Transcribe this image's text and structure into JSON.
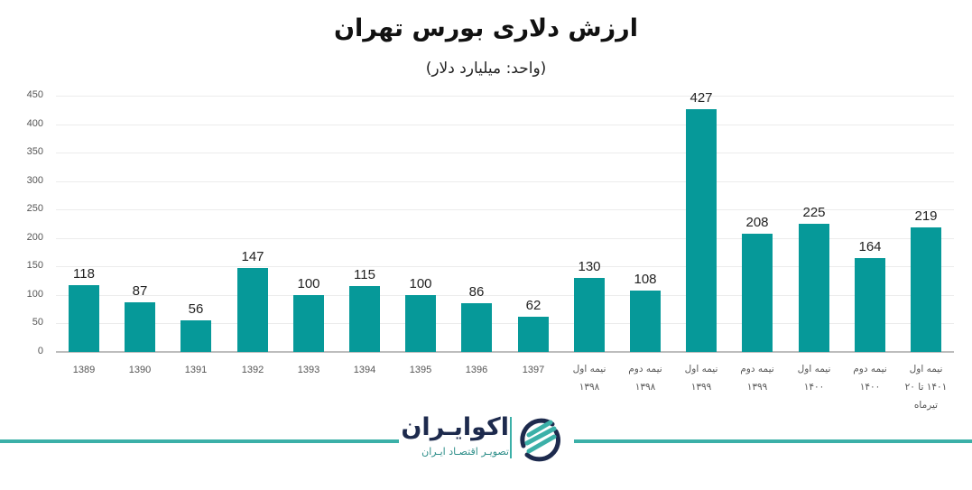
{
  "header": {
    "title": "ارزش دلاری بورس تهران",
    "subtitle": "(واحد: میلیارد دلار)"
  },
  "colors": {
    "bar": "#069999",
    "grid": "#ececec",
    "axis": "#bdbdbd",
    "footer_line": "#3bb0a8",
    "logo_navy": "#1d2a4d",
    "logo_teal": "#3bb0a8"
  },
  "brand": {
    "name": "اکوایـران",
    "tagline": "تصویـر اقتصـاد ایـران"
  },
  "chart_data": {
    "type": "bar",
    "title": "ارزش دلاری بورس تهران",
    "subtitle": "(واحد: میلیارد دلار)",
    "xlabel": "",
    "ylabel": "",
    "ylim": [
      0,
      450
    ],
    "yticks": [
      0,
      50,
      100,
      150,
      200,
      250,
      300,
      350,
      400,
      450
    ],
    "grid": true,
    "legend": "none",
    "data_labels": true,
    "categories": [
      "1389",
      "1390",
      "1391",
      "1392",
      "1393",
      "1394",
      "1395",
      "1396",
      "1397",
      "نیمه اول\n۱۳۹۸",
      "نیمه دوم\n۱۳۹۸",
      "نیمه اول\n۱۳۹۹",
      "نیمه دوم\n۱۳۹۹",
      "نیمه اول\n۱۴۰۰",
      "نیمه دوم\n۱۴۰۰",
      "نیمه اول\n۱۴۰۱ تا ۲۰\nتیرماه"
    ],
    "values": [
      118,
      87,
      56,
      147,
      100,
      115,
      100,
      86,
      62,
      130,
      108,
      427,
      208,
      225,
      164,
      219
    ]
  }
}
